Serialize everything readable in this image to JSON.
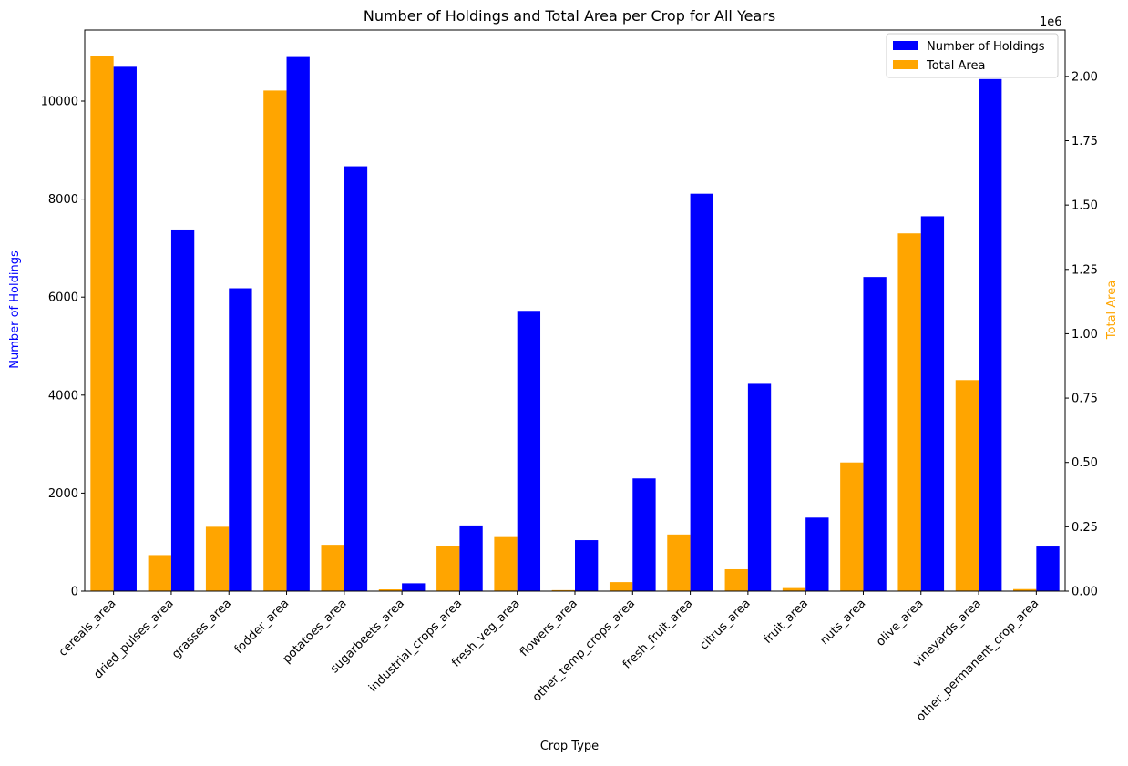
{
  "chart_data": {
    "type": "bar",
    "title": "Number of Holdings and Total Area per Crop for All Years",
    "xlabel": "Crop Type",
    "ylabel_left": "Number of Holdings",
    "ylabel_right": "Total Area",
    "right_axis_offset_text": "1e6",
    "categories": [
      "cereals_area",
      "dried_pulses_area",
      "grasses_area",
      "fodder_area",
      "potatoes_area",
      "sugarbeets_area",
      "industrial_crops_area",
      "fresh_veg_area",
      "flowers_area",
      "other_temp_crops_area",
      "fresh_fruit_area",
      "citrus_area",
      "fruit_area",
      "nuts_area",
      "olive_area",
      "vineyards_area",
      "other_permanent_crop_area"
    ],
    "ylim_left": [
      0,
      11450
    ],
    "ylim_right": [
      0,
      2.18
    ],
    "yticks_left": [
      0,
      2000,
      4000,
      6000,
      8000,
      10000
    ],
    "yticks_right": [
      "0.00",
      "0.25",
      "0.50",
      "0.75",
      "1.00",
      "1.25",
      "1.50",
      "1.75",
      "2.00"
    ],
    "legend_position": "top-right",
    "series": [
      {
        "name": "Number of Holdings",
        "axis": "left",
        "color": "#0000ff",
        "values": [
          10700,
          7380,
          6180,
          10900,
          8670,
          160,
          1340,
          5720,
          1040,
          2300,
          8110,
          4230,
          1500,
          6410,
          7650,
          10450,
          910
        ]
      },
      {
        "name": "Total Area",
        "axis": "right",
        "color": "#ffa500",
        "values": [
          2.08,
          0.14,
          0.25,
          1.945,
          0.18,
          0.007,
          0.175,
          0.21,
          0.004,
          0.035,
          0.22,
          0.085,
          0.012,
          0.5,
          1.39,
          0.82,
          0.008
        ]
      }
    ]
  }
}
